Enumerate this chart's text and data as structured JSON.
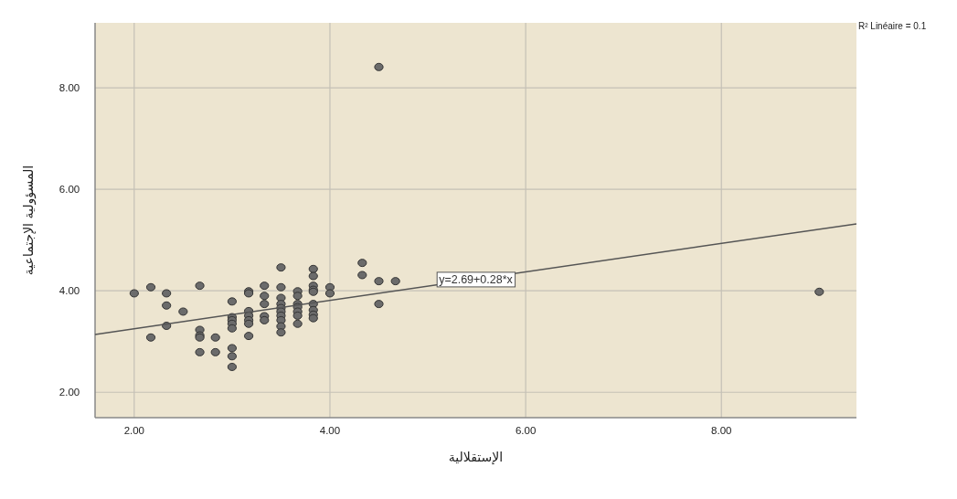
{
  "chart_data": {
    "type": "scatter",
    "xlabel": "الإستقلالية",
    "ylabel": "المسؤولية الإجتماعية",
    "xlim": [
      1.6,
      9.38
    ],
    "ylim": [
      1.5,
      9.28
    ],
    "xticks": [
      {
        "value": 2,
        "label": "2.00"
      },
      {
        "value": 4,
        "label": "4.00"
      },
      {
        "value": 6,
        "label": "6.00"
      },
      {
        "value": 8,
        "label": "8.00"
      }
    ],
    "yticks": [
      {
        "value": 2,
        "label": "2.00"
      },
      {
        "value": 4,
        "label": "4.00"
      },
      {
        "value": 6,
        "label": "6.00"
      },
      {
        "value": 8,
        "label": "8.00"
      }
    ],
    "grid": true,
    "annotations": [
      "R² Linéaire = 0.1",
      {
        "text": "y=2.69+0.28*x",
        "x": 5.49,
        "y": 4.23
      }
    ],
    "series": [
      {
        "marker": "circle",
        "color": "#6b6b6b",
        "x": [
          2.0,
          2.17,
          2.17,
          2.33,
          2.33,
          2.33,
          2.5,
          2.67,
          2.67,
          2.67,
          2.67,
          2.67,
          2.83,
          2.83,
          3.0,
          3.0,
          3.0,
          3.0,
          3.0,
          3.0,
          3.0,
          3.0,
          3.17,
          3.17,
          3.17,
          3.17,
          3.17,
          3.17,
          3.17,
          3.33,
          3.33,
          3.33,
          3.33,
          3.33,
          3.5,
          3.5,
          3.5,
          3.5,
          3.5,
          3.5,
          3.5,
          3.5,
          3.5,
          3.5,
          3.67,
          3.67,
          3.67,
          3.67,
          3.67,
          3.67,
          3.67,
          3.83,
          3.83,
          3.83,
          3.83,
          3.83,
          3.83,
          3.83,
          3.83,
          3.83,
          4.0,
          4.0,
          4.33,
          4.33,
          4.5,
          4.5,
          4.67,
          4.5,
          9.0
        ],
        "values": [
          3.95,
          4.07,
          3.08,
          3.95,
          3.71,
          3.31,
          3.59,
          4.1,
          3.23,
          3.12,
          3.08,
          2.79,
          3.08,
          2.79,
          3.79,
          3.48,
          3.42,
          3.35,
          3.26,
          2.87,
          2.71,
          2.5,
          3.99,
          3.95,
          3.6,
          3.51,
          3.42,
          3.35,
          3.11,
          4.1,
          3.9,
          3.74,
          3.5,
          3.42,
          4.46,
          4.07,
          3.86,
          3.74,
          3.66,
          3.59,
          3.51,
          3.42,
          3.3,
          3.18,
          3.99,
          3.9,
          3.74,
          3.68,
          3.59,
          3.51,
          3.35,
          4.43,
          4.29,
          4.1,
          4.02,
          3.98,
          3.74,
          3.62,
          3.53,
          3.46,
          4.07,
          3.95,
          4.55,
          4.31,
          4.19,
          3.74,
          4.19,
          8.41,
          3.98
        ]
      },
      {
        "type": "line",
        "color": "#555555",
        "x": [
          1.6,
          9.38
        ],
        "values": [
          3.14,
          5.32
        ]
      }
    ]
  }
}
